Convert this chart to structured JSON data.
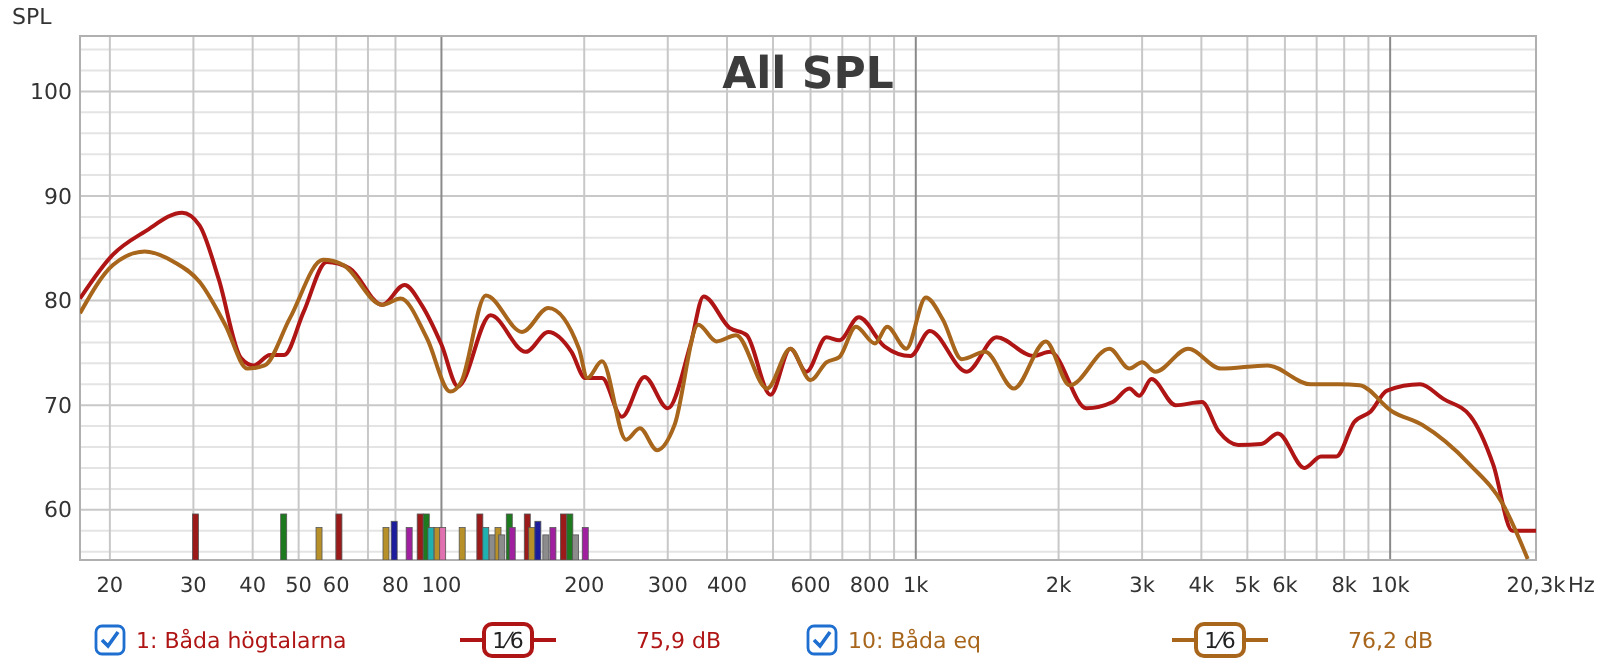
{
  "chart_data": {
    "type": "line",
    "title": "All SPL",
    "ylabel": "SPL",
    "log": "x",
    "grid": true,
    "legend": "bottom",
    "xlim": [
      17.3,
      20300
    ],
    "ylim": [
      55.2,
      105.3
    ],
    "xticks": [
      20,
      30,
      40,
      50,
      60,
      {
        "value": 70,
        "label": null
      },
      80,
      100,
      200,
      300,
      400,
      {
        "value": 500,
        "label": null
      },
      600,
      {
        "value": 700,
        "label": null
      },
      800,
      {
        "value": 900,
        "label": null
      },
      {
        "value": 1000,
        "label": "1k"
      },
      {
        "value": 2000,
        "label": "2k"
      },
      {
        "value": 3000,
        "label": "3k"
      },
      {
        "value": 4000,
        "label": "4k"
      },
      {
        "value": 5000,
        "label": "5k"
      },
      {
        "value": 6000,
        "label": "6k"
      },
      {
        "value": 7000,
        "label": null
      },
      {
        "value": 8000,
        "label": "8k"
      },
      {
        "value": 9000,
        "label": null
      },
      {
        "value": 10000,
        "label": "10k"
      },
      {
        "value": 20300,
        "label": "20,3k"
      }
    ],
    "xlabel": "Hz",
    "yticks": [
      {
        "value": 56,
        "label": null
      },
      {
        "value": 58,
        "label": null
      },
      60,
      {
        "value": 62,
        "label": null
      },
      {
        "value": 64,
        "label": null
      },
      {
        "value": 66,
        "label": null
      },
      {
        "value": 68,
        "label": null
      },
      70,
      {
        "value": 72,
        "label": null
      },
      {
        "value": 74,
        "label": null
      },
      {
        "value": 76,
        "label": null
      },
      {
        "value": 78,
        "label": null
      },
      80,
      {
        "value": 82,
        "label": null
      },
      {
        "value": 84,
        "label": null
      },
      {
        "value": 86,
        "label": null
      },
      {
        "value": 88,
        "label": null
      },
      90,
      {
        "value": 92,
        "label": null
      },
      {
        "value": 94,
        "label": null
      },
      {
        "value": 96,
        "label": null
      },
      {
        "value": 98,
        "label": null
      },
      100,
      {
        "value": 102,
        "label": null
      },
      {
        "value": 104,
        "label": null
      }
    ],
    "annotations": [
      "1⁄6",
      "75,9 dB",
      "1⁄6",
      "76,2 dB"
    ],
    "series": [
      {
        "type": "bar",
        "x": [
          30.3,
          46.5,
          55.2,
          60.8,
          76.4,
          79.5,
          85.5,
          90.2,
          92.9,
          95,
          98,
          100.6,
          110.6,
          120.5,
          124,
          128,
          131.6,
          134,
          139,
          141,
          151.7,
          155,
          159.7,
          166,
          171.8,
          180.8,
          186.5,
          191.8,
          201
        ],
        "values": [
          59.6,
          59.6,
          58.3,
          59.6,
          58.3,
          58.9,
          58.3,
          59.6,
          59.6,
          58.3,
          58.3,
          58.3,
          58.3,
          59.6,
          58.3,
          57.6,
          58.3,
          57.6,
          59.6,
          58.3,
          59.6,
          58.3,
          58.9,
          57.6,
          58.3,
          59.6,
          59.6,
          57.6,
          58.3
        ],
        "colors": [
          "#9b1b1b",
          "#1e7a1e",
          "#b8902a",
          "#9b1b1b",
          "#b8902a",
          "#1c1c9c",
          "#a020a0",
          "#9b1b1b",
          "#1e7a1e",
          "#20b0b0",
          "#b8902a",
          "#e070b0",
          "#b8902a",
          "#9b1b1b",
          "#20b0b0",
          "#8c8c8c",
          "#b8902a",
          "#8c8c8c",
          "#1e7a1e",
          "#a020a0",
          "#9b1b1b",
          "#b8902a",
          "#1c1c9c",
          "#8c8c8c",
          "#a020a0",
          "#9b1b1b",
          "#1e7a1e",
          "#8c8c8c",
          "#a020a0"
        ]
      },
      {
        "name": "1: Båda högtalarna",
        "color": "#b01515",
        "x": [
          17.3,
          20.3,
          23.7,
          28.4,
          30.9,
          33.9,
          37.8,
          40.2,
          43.5,
          46.6,
          51.2,
          57.3,
          64,
          75,
          83.6,
          90.8,
          100,
          108.4,
          126.9,
          150.6,
          168,
          188,
          201,
          218,
          240,
          268,
          300,
          335,
          357,
          405,
          440,
          494,
          544,
          588,
          648,
          690,
          758,
          860,
          975,
          1070,
          1280,
          1480,
          1770,
          1920,
          2290,
          2600,
          2820,
          2960,
          3140,
          3530,
          4010,
          4350,
          4780,
          5350,
          5800,
          6600,
          7150,
          7700,
          8400,
          9100,
          9850,
          11560,
          12950,
          14740,
          16500,
          18100,
          19300,
          20300
        ],
        "values": [
          80.2,
          84.4,
          86.6,
          88.4,
          87.2,
          82.1,
          74.5,
          73.8,
          74.8,
          74.8,
          78.9,
          83.7,
          83.1,
          79.6,
          81.5,
          79.6,
          75.8,
          71.8,
          78.6,
          75.1,
          77,
          75.1,
          72.6,
          72.6,
          68.9,
          72.7,
          69.7,
          75.8,
          80.4,
          77.4,
          76.7,
          71,
          75.4,
          73.2,
          76.5,
          76.2,
          78.4,
          75.6,
          74.7,
          77.1,
          73.2,
          76.5,
          74.7,
          75.1,
          69.7,
          70.3,
          71.6,
          70.9,
          72.5,
          70,
          70.3,
          67.5,
          66.2,
          66.3,
          67.3,
          64,
          65.1,
          65.1,
          68.4,
          69.4,
          71.4,
          72,
          70.6,
          69,
          64.3,
          58,
          58,
          58
        ]
      },
      {
        "name": "10: Båda eq",
        "color": "#a8661c",
        "x": [
          17.3,
          20.3,
          23.7,
          27.3,
          30.9,
          35,
          39,
          42.4,
          47.9,
          56.3,
          62.1,
          75,
          82,
          93.2,
          104.4,
          110,
          124,
          148,
          168,
          195,
          203,
          218,
          245,
          262,
          285,
          310,
          348,
          380,
          418,
          486,
          544,
          600,
          648,
          690,
          748,
          820,
          870,
          955,
          1050,
          1140,
          1250,
          1400,
          1610,
          1880,
          2110,
          2560,
          2820,
          3000,
          3200,
          3750,
          4400,
          5510,
          6800,
          7800,
          8620,
          10100,
          11700,
          14740,
          17300,
          19500
        ],
        "values": [
          78.8,
          83.4,
          84.7,
          83.7,
          81.8,
          77.7,
          73.5,
          73.8,
          78.3,
          83.9,
          83.4,
          79.6,
          80.2,
          76.4,
          71.3,
          72.2,
          80.5,
          77,
          79.3,
          75.4,
          72.6,
          74.2,
          66.7,
          67.8,
          65.7,
          68.1,
          77.7,
          76.1,
          76.7,
          71.6,
          75.4,
          72.4,
          74.1,
          74.6,
          77.5,
          75.9,
          77.5,
          75.4,
          80.3,
          78.2,
          74.4,
          75.1,
          71.6,
          76.1,
          71.9,
          75.4,
          73.5,
          74.1,
          73.2,
          75.4,
          73.5,
          73.8,
          72,
          72,
          71.9,
          69.4,
          68.1,
          64.3,
          60.5,
          55.3
        ]
      }
    ]
  }
}
